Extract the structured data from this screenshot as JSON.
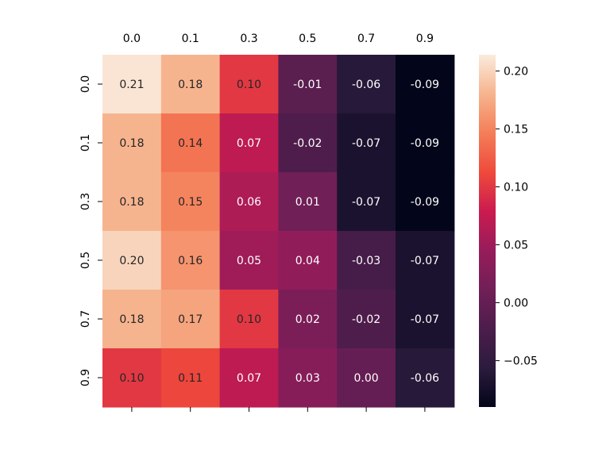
{
  "chart_data": {
    "type": "heatmap",
    "title": "",
    "xlabel": "",
    "ylabel": "",
    "x_labels": [
      "0.0",
      "0.1",
      "0.3",
      "0.5",
      "0.7",
      "0.9"
    ],
    "y_labels": [
      "0.0",
      "0.1",
      "0.3",
      "0.5",
      "0.7",
      "0.9"
    ],
    "values": [
      [
        0.21,
        0.18,
        0.1,
        -0.01,
        -0.06,
        -0.09
      ],
      [
        0.18,
        0.14,
        0.07,
        -0.02,
        -0.07,
        -0.09
      ],
      [
        0.18,
        0.15,
        0.06,
        0.01,
        -0.07,
        -0.09
      ],
      [
        0.2,
        0.16,
        0.05,
        0.04,
        -0.03,
        -0.07
      ],
      [
        0.18,
        0.17,
        0.1,
        0.02,
        -0.02,
        -0.07
      ],
      [
        0.1,
        0.11,
        0.07,
        0.03,
        0.0,
        -0.06
      ]
    ],
    "value_labels": [
      [
        "0.21",
        "0.18",
        "0.10",
        "-0.01",
        "-0.06",
        "-0.09"
      ],
      [
        "0.18",
        "0.14",
        "0.07",
        "-0.02",
        "-0.07",
        "-0.09"
      ],
      [
        "0.18",
        "0.15",
        "0.06",
        "0.01",
        "-0.07",
        "-0.09"
      ],
      [
        "0.20",
        "0.16",
        "0.05",
        "0.04",
        "-0.03",
        "-0.07"
      ],
      [
        "0.18",
        "0.17",
        "0.10",
        "0.02",
        "-0.02",
        "-0.07"
      ],
      [
        "0.10",
        "0.11",
        "0.07",
        "0.03",
        "0.00",
        "-0.06"
      ]
    ],
    "x_axis_position": "top",
    "colorbar": {
      "min": -0.09,
      "max": 0.214,
      "ticks": [
        0.2,
        0.15,
        0.1,
        0.05,
        0.0,
        -0.05
      ],
      "tick_labels": [
        "0.20",
        "0.15",
        "0.10",
        "0.05",
        "0.00",
        "−0.05"
      ]
    },
    "colormap": "rocket",
    "colormap_stops": [
      "#03051a",
      "#2b1b3d",
      "#4c1d4b",
      "#711f57",
      "#971c5b",
      "#cb1b4f",
      "#ef4a3c",
      "#f47e58",
      "#f6b48e",
      "#faebdd"
    ]
  }
}
